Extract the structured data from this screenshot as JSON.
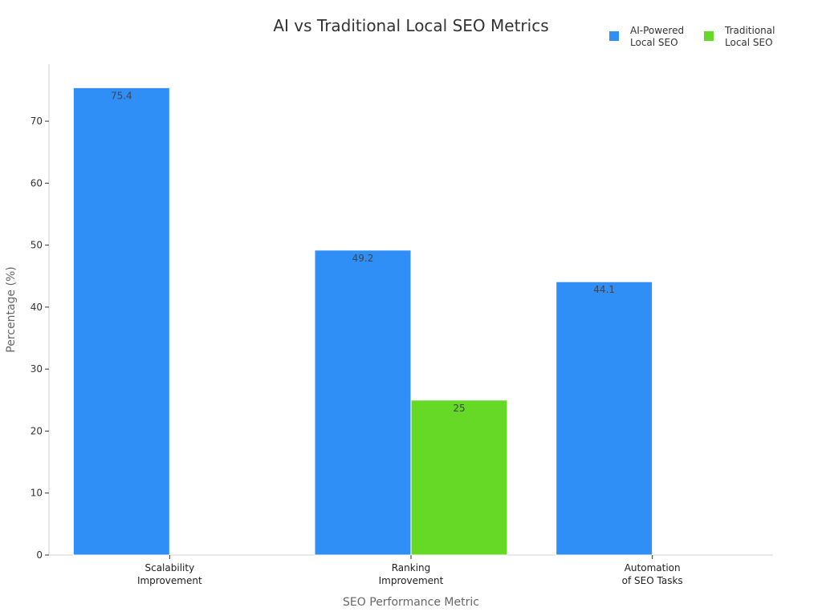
{
  "chart_data": {
    "type": "bar",
    "title": "AI vs Traditional Local SEO Metrics",
    "xlabel": "SEO Performance Metric",
    "ylabel": "Percentage (%)",
    "categories": [
      "Scalability\nImprovement",
      "Ranking\nImprovement",
      "Automation\nof SEO Tasks"
    ],
    "series": [
      {
        "name": "AI-Powered\nLocal SEO",
        "color": "#2f8ff7",
        "values": [
          75.4,
          49.2,
          44.1
        ]
      },
      {
        "name": "Traditional\nLocal SEO",
        "color": "#66d927",
        "values": [
          null,
          25,
          null
        ]
      }
    ],
    "yticks": [
      0,
      10,
      20,
      30,
      40,
      50,
      60,
      70
    ],
    "ylim": [
      0,
      79.2
    ],
    "grid": false,
    "legend_position": "top-right"
  }
}
